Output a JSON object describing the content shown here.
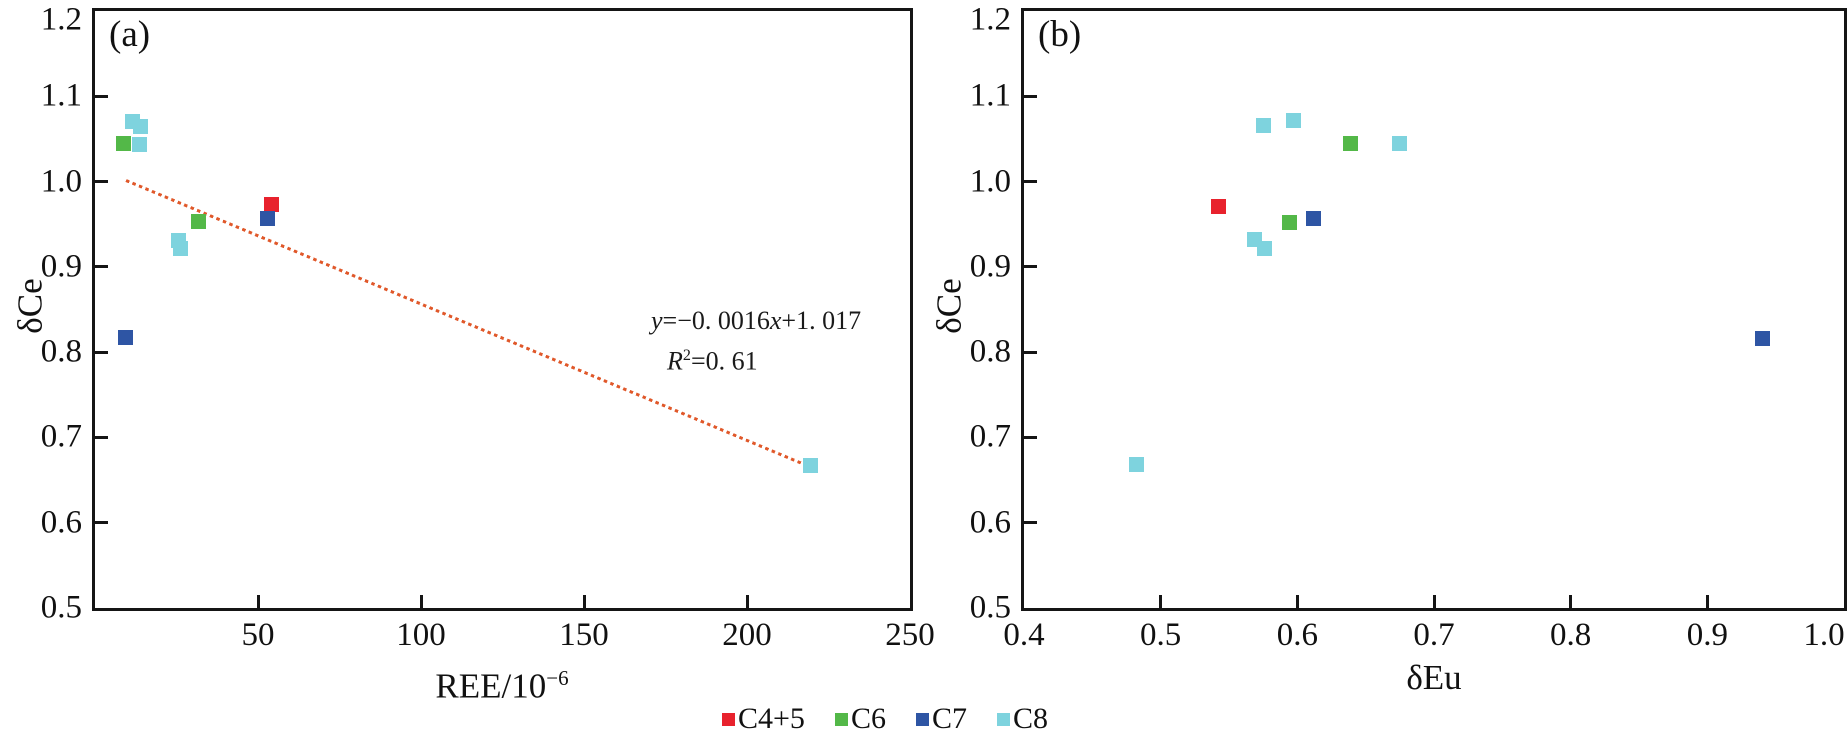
{
  "figure": {
    "background": "#ffffff",
    "axis_color": "#151515",
    "text_color": "#111111"
  },
  "legend": {
    "items": [
      {
        "label": "C4+5",
        "color": "#e8222d"
      },
      {
        "label": "C6",
        "color": "#53b848"
      },
      {
        "label": "C7",
        "color": "#2e55a4"
      },
      {
        "label": "C8",
        "color": "#7ed3de"
      }
    ]
  },
  "chart_data": [
    {
      "id": "a",
      "type": "scatter",
      "panel_label": "(a)",
      "xlabel_base": "REE/10",
      "xlabel_sup": "−6",
      "ylabel": "δCe",
      "xlim": [
        0,
        250
      ],
      "ylim": [
        0.5,
        1.2
      ],
      "grid": false,
      "xticks": [
        {
          "v": 50,
          "label": "50"
        },
        {
          "v": 100,
          "label": "100"
        },
        {
          "v": 150,
          "label": "150"
        },
        {
          "v": 200,
          "label": "200"
        },
        {
          "v": 250,
          "label": "250"
        }
      ],
      "yticks": [
        {
          "v": 0.5,
          "label": "0.5"
        },
        {
          "v": 0.6,
          "label": "0.6"
        },
        {
          "v": 0.7,
          "label": "0.7"
        },
        {
          "v": 0.8,
          "label": "0.8"
        },
        {
          "v": 0.9,
          "label": "0.9"
        },
        {
          "v": 1.0,
          "label": "1.0"
        },
        {
          "v": 1.1,
          "label": "1.1"
        },
        {
          "v": 1.2,
          "label": "1.2",
          "dy": 9
        }
      ],
      "series": [
        {
          "name": "C4+5",
          "color": "#e8222d",
          "points": [
            [
              54.2,
              0.973
            ]
          ]
        },
        {
          "name": "C6",
          "color": "#53b848",
          "points": [
            [
              8.6,
              1.045
            ],
            [
              31.9,
              0.953
            ]
          ]
        },
        {
          "name": "C7",
          "color": "#2e55a4",
          "points": [
            [
              9.4,
              0.817
            ],
            [
              53.0,
              0.957
            ]
          ]
        },
        {
          "name": "C8",
          "color": "#7ed3de",
          "points": [
            [
              11.6,
              1.07
            ],
            [
              14.0,
              1.064
            ],
            [
              13.5,
              1.044
            ],
            [
              25.6,
              0.931
            ],
            [
              26.1,
              0.921
            ],
            [
              219.4,
              0.667
            ]
          ]
        }
      ],
      "trendline": {
        "slope": -0.0016,
        "intercept": 1.017,
        "r_squared": 0.61,
        "x_start": 9.5,
        "x_end": 216.5,
        "color": "#e0582a",
        "style": "dotted",
        "eq": {
          "var1": "y",
          "seg1": "=−0. 0016",
          "var2": "x",
          "seg2": "+1. 017",
          "rvar": "R",
          "rsup": "2",
          "rseg": "=0. 61"
        }
      }
    },
    {
      "id": "b",
      "type": "scatter",
      "panel_label": "(b)",
      "xlabel_base": "δEu",
      "xlabel_sup": "",
      "ylabel": "δCe",
      "xlim": [
        0.4,
        1.0
      ],
      "ylim": [
        0.5,
        1.2
      ],
      "grid": false,
      "xticks": [
        {
          "v": 0.4,
          "label": "0.4"
        },
        {
          "v": 0.5,
          "label": "0.5"
        },
        {
          "v": 0.6,
          "label": "0.6"
        },
        {
          "v": 0.7,
          "label": "0.7"
        },
        {
          "v": 0.8,
          "label": "0.8"
        },
        {
          "v": 0.9,
          "label": "0.9"
        },
        {
          "v": 1.0,
          "label": "1.0",
          "dx": -20
        }
      ],
      "yticks": [
        {
          "v": 0.5,
          "label": "0.5"
        },
        {
          "v": 0.6,
          "label": "0.6"
        },
        {
          "v": 0.7,
          "label": "0.7"
        },
        {
          "v": 0.8,
          "label": "0.8"
        },
        {
          "v": 0.9,
          "label": "0.9"
        },
        {
          "v": 1.0,
          "label": "1.0"
        },
        {
          "v": 1.1,
          "label": "1.1"
        },
        {
          "v": 1.2,
          "label": "1.2",
          "dy": 9
        }
      ],
      "series": [
        {
          "name": "C4+5",
          "color": "#e8222d",
          "points": [
            [
              0.542,
              0.971
            ]
          ]
        },
        {
          "name": "C6",
          "color": "#53b848",
          "points": [
            [
              0.594,
              0.952
            ],
            [
              0.639,
              1.045
            ]
          ]
        },
        {
          "name": "C7",
          "color": "#2e55a4",
          "points": [
            [
              0.612,
              0.957
            ],
            [
              0.94,
              0.816
            ]
          ]
        },
        {
          "name": "C8",
          "color": "#7ed3de",
          "points": [
            [
              0.575,
              1.066
            ],
            [
              0.597,
              1.072
            ],
            [
              0.675,
              1.045
            ],
            [
              0.569,
              0.932
            ],
            [
              0.576,
              0.922
            ],
            [
              0.482,
              0.668
            ]
          ]
        }
      ]
    }
  ]
}
